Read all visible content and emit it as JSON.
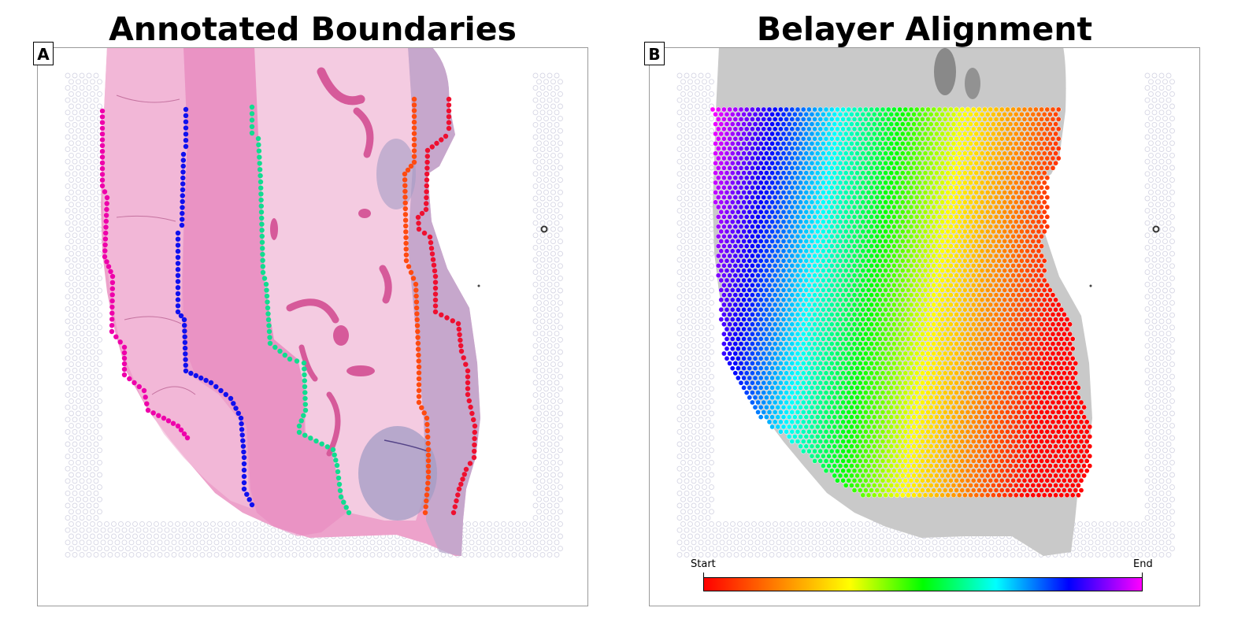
{
  "panels": [
    {
      "letter": "A",
      "title": "Annotated Boundaries"
    },
    {
      "letter": "B",
      "title": "Belayer Alignment"
    }
  ],
  "colorbar": {
    "start_label": "Start",
    "end_label": "End",
    "colors": [
      "#ff0000",
      "#ff8000",
      "#ffff00",
      "#00ff00",
      "#00ffff",
      "#0000ff",
      "#ff00ff"
    ]
  },
  "boundary_colors": [
    "#ee00aa",
    "#1010ee",
    "#10dd90",
    "#ff4a10",
    "#ee1030"
  ],
  "tissue_colors": {
    "he_pink": "#eda2cb",
    "he_dark": "#d65a9a",
    "he_purple": "#b8a8cc",
    "gray": "#c9c9c9",
    "gray_dark": "#8a8a8a"
  }
}
